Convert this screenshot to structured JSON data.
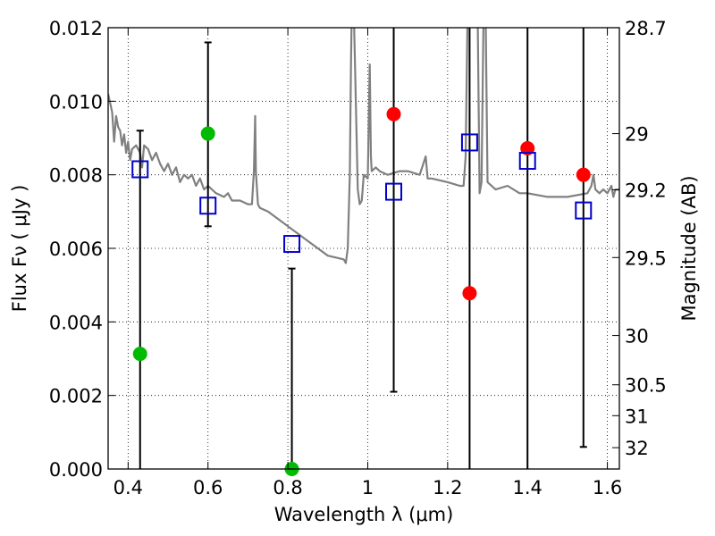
{
  "chart_data": {
    "type": "scatter",
    "title": "",
    "xlabel": "Wavelength  λ (μm)",
    "ylabel": "Flux  Fν  ( μJy )",
    "y2label": "Magnitude (AB)",
    "xlim": [
      0.35,
      1.63
    ],
    "ylim": [
      0.0,
      0.012
    ],
    "grid": true,
    "grid_style": "dotted",
    "x_ticks": [
      0.4,
      0.6,
      0.8,
      1.0,
      1.2,
      1.4,
      1.6
    ],
    "x_tick_labels": [
      "0.4",
      "0.6",
      "0.8",
      "1",
      "1.2",
      "1.4",
      "1.6"
    ],
    "y_ticks": [
      0.0,
      0.002,
      0.004,
      0.006,
      0.008,
      0.01,
      0.012
    ],
    "y_tick_labels": [
      "0.000",
      "0.002",
      "0.004",
      "0.006",
      "0.008",
      "0.010",
      "0.012"
    ],
    "y2_ticks": [
      {
        "label": "28.7",
        "flux": 0.012
      },
      {
        "label": "29",
        "flux": 0.00912
      },
      {
        "label": "29.2",
        "flux": 0.00759
      },
      {
        "label": "29.5",
        "flux": 0.00575
      },
      {
        "label": "30",
        "flux": 0.00363
      },
      {
        "label": "30.5",
        "flux": 0.00229
      },
      {
        "label": "31",
        "flux": 0.00145
      },
      {
        "label": "32",
        "flux": 0.00058
      }
    ],
    "colors": {
      "model": "#808080",
      "detection": "#ff0000",
      "upper_limit": "#00bb00",
      "model_photometry": "#0000cc",
      "errorbar": "#000000"
    },
    "model_spectrum": {
      "name": "",
      "x": [
        0.35,
        0.352,
        0.36,
        0.365,
        0.37,
        0.375,
        0.38,
        0.385,
        0.39,
        0.395,
        0.4,
        0.405,
        0.41,
        0.42,
        0.43,
        0.435,
        0.44,
        0.45,
        0.46,
        0.47,
        0.48,
        0.49,
        0.5,
        0.51,
        0.52,
        0.53,
        0.54,
        0.55,
        0.56,
        0.57,
        0.58,
        0.59,
        0.6,
        0.62,
        0.64,
        0.65,
        0.66,
        0.68,
        0.7,
        0.71,
        0.715,
        0.718,
        0.72,
        0.725,
        0.73,
        0.75,
        0.8,
        0.85,
        0.9,
        0.94,
        0.945,
        0.95,
        0.955,
        0.958,
        0.96,
        0.965,
        0.968,
        0.975,
        0.98,
        0.985,
        0.99,
        1.0,
        1.005,
        1.008,
        1.01,
        1.02,
        1.03,
        1.05,
        1.08,
        1.1,
        1.13,
        1.145,
        1.15,
        1.155,
        1.16,
        1.2,
        1.23,
        1.24,
        1.245,
        1.25,
        1.255,
        1.26,
        1.27,
        1.275,
        1.28,
        1.285,
        1.29,
        1.295,
        1.3,
        1.32,
        1.35,
        1.38,
        1.4,
        1.45,
        1.5,
        1.55,
        1.56,
        1.565,
        1.57,
        1.58,
        1.59,
        1.6,
        1.61,
        1.615,
        1.62,
        1.63
      ],
      "y": [
        0.0102,
        0.0101,
        0.0097,
        0.0089,
        0.0096,
        0.0093,
        0.0092,
        0.0088,
        0.0091,
        0.0086,
        0.0089,
        0.0084,
        0.0087,
        0.0088,
        0.0086,
        0.0082,
        0.0088,
        0.0087,
        0.0084,
        0.0086,
        0.0083,
        0.0081,
        0.0083,
        0.008,
        0.0082,
        0.0078,
        0.008,
        0.0079,
        0.008,
        0.0077,
        0.0079,
        0.0076,
        0.0077,
        0.0075,
        0.0074,
        0.0075,
        0.0073,
        0.0073,
        0.0072,
        0.0072,
        0.0081,
        0.0096,
        0.0081,
        0.0072,
        0.0071,
        0.007,
        0.0066,
        0.0062,
        0.0058,
        0.0057,
        0.0056,
        0.006,
        0.008,
        0.011,
        0.0125,
        0.0125,
        0.011,
        0.0076,
        0.0072,
        0.0073,
        0.008,
        0.0079,
        0.011,
        0.0085,
        0.0081,
        0.0082,
        0.0081,
        0.008,
        0.0081,
        0.0081,
        0.008,
        0.0085,
        0.0079,
        0.0079,
        0.0079,
        0.0078,
        0.0077,
        0.0077,
        0.0085,
        0.0125,
        0.0125,
        0.0125,
        0.0125,
        0.0125,
        0.0075,
        0.0078,
        0.0125,
        0.0125,
        0.0078,
        0.0076,
        0.0077,
        0.0075,
        0.0075,
        0.0074,
        0.0074,
        0.0075,
        0.0077,
        0.008,
        0.0076,
        0.0075,
        0.0076,
        0.0075,
        0.0077,
        0.0074,
        0.0076,
        0.0076
      ]
    },
    "detections": {
      "name": "",
      "x": [
        1.065,
        1.255,
        1.4,
        1.54
      ],
      "y": [
        0.00965,
        0.00478,
        0.00872,
        0.008
      ]
    },
    "upper_limits": {
      "name": "",
      "x": [
        0.43,
        0.6,
        0.81
      ],
      "y": [
        0.00313,
        0.00912,
        0.0
      ]
    },
    "model_photometry": {
      "name": "",
      "x": [
        0.43,
        0.6,
        0.81,
        1.065,
        1.255,
        1.4,
        1.54
      ],
      "y": [
        0.00815,
        0.00716,
        0.00612,
        0.00754,
        0.00888,
        0.00838,
        0.00703
      ]
    },
    "errorbars": [
      {
        "x": 0.43,
        "ylo": 0.0,
        "yhi": 0.0092
      },
      {
        "x": 0.6,
        "ylo": 0.0066,
        "yhi": 0.0116
      },
      {
        "x": 0.81,
        "ylo": 0.0,
        "yhi": 0.00545
      },
      {
        "x": 1.065,
        "ylo": 0.0021,
        "yhi": 0.0125
      },
      {
        "x": 1.255,
        "ylo": 0.0,
        "yhi": 0.0125
      },
      {
        "x": 1.4,
        "ylo": 0.0,
        "yhi": 0.0125
      },
      {
        "x": 1.54,
        "ylo": 0.0006,
        "yhi": 0.0125
      }
    ]
  }
}
